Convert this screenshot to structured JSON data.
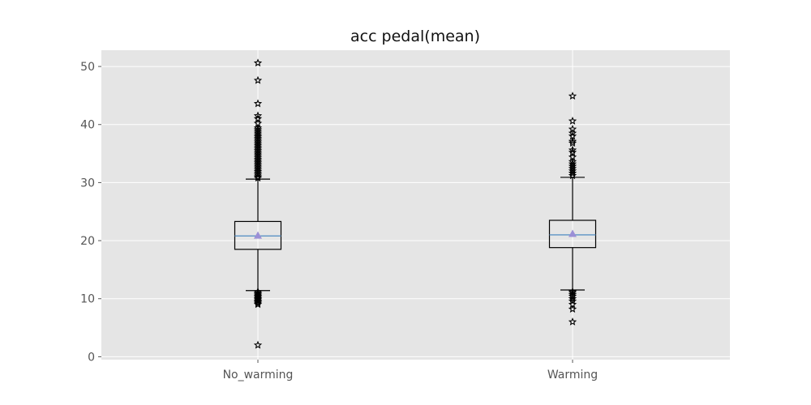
{
  "chart_data": {
    "type": "box",
    "title": "acc pedal(mean)",
    "xlabel": "",
    "ylabel": "",
    "ylim": [
      -0.5,
      52.8
    ],
    "yticks": [
      0,
      10,
      20,
      30,
      40,
      50
    ],
    "grid": true,
    "style": "ggplot",
    "categories": [
      "No_warming",
      "Warming"
    ],
    "boxes": [
      {
        "label": "No_warming",
        "whisker_low": 11.4,
        "q1": 18.5,
        "median": 20.8,
        "mean": 20.9,
        "q3": 23.3,
        "whisker_high": 30.6,
        "outliers": [
          2.0,
          9.0,
          9.2,
          9.4,
          9.6,
          9.8,
          10.0,
          10.2,
          10.4,
          10.6,
          10.8,
          11.0,
          11.2,
          30.8,
          31.0,
          31.3,
          31.6,
          31.9,
          32.2,
          32.5,
          32.8,
          33.1,
          33.4,
          33.7,
          34.0,
          34.3,
          34.6,
          34.9,
          35.2,
          35.5,
          35.8,
          36.1,
          36.4,
          36.7,
          37.0,
          37.3,
          37.6,
          37.9,
          38.2,
          38.5,
          38.8,
          39.1,
          39.4,
          40.2,
          41.0,
          41.5,
          43.6,
          47.6,
          50.6
        ]
      },
      {
        "label": "Warming",
        "whisker_low": 11.5,
        "q1": 18.8,
        "median": 21.0,
        "mean": 21.2,
        "q3": 23.5,
        "whisker_high": 30.9,
        "outliers": [
          6.0,
          8.2,
          9.0,
          9.6,
          10.0,
          10.4,
          10.7,
          11.0,
          11.2,
          31.2,
          31.6,
          32.0,
          32.4,
          32.8,
          33.2,
          33.6,
          34.4,
          35.2,
          35.6,
          36.8,
          37.1,
          38.0,
          38.5,
          39.2,
          40.6,
          44.9
        ]
      }
    ],
    "colors": {
      "background": "#e5e5e5",
      "grid": "#ffffff",
      "box": "#000000",
      "median": "#5c93c5",
      "mean_marker": "#9b8fd6",
      "outlier_marker": "#000000"
    },
    "mean_marker": "triangle",
    "outlier_marker": "star"
  }
}
